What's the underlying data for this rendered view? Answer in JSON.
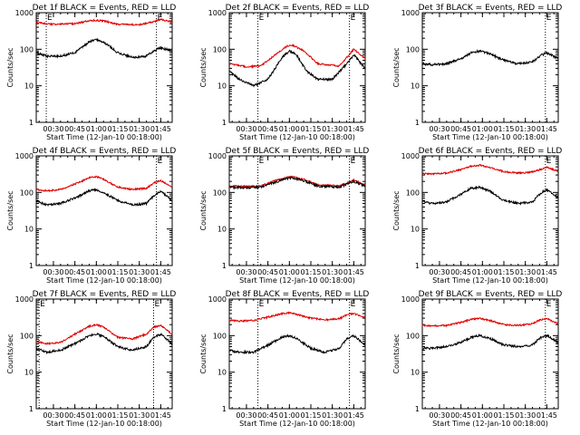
{
  "chart_data": [
    {
      "type": "line",
      "title": "Det 1f BLACK = Events, RED = LLD",
      "xlabel": "Start Time (12-Jan-10 00:18:00)",
      "ylabel": "Counts/sec",
      "xlim_minutes": [
        18,
        113
      ],
      "ylim": [
        1,
        1000
      ],
      "yscale": "log",
      "x_ticks": [
        "00:30",
        "00:45",
        "01:00",
        "01:15",
        "01:30",
        "01:45"
      ],
      "y_ticks": [
        "1",
        "10",
        "100",
        "1000"
      ],
      "markers": [
        {
          "label": "E",
          "x_minutes": 25
        },
        {
          "label": "E",
          "x_minutes": 102
        }
      ],
      "series": [
        {
          "name": "Events",
          "color": "#000000",
          "x_minutes": [
            18,
            25,
            35,
            45,
            55,
            60,
            65,
            75,
            85,
            95,
            100,
            105,
            113
          ],
          "values": [
            80,
            65,
            65,
            80,
            160,
            180,
            160,
            80,
            60,
            65,
            90,
            110,
            90
          ]
        },
        {
          "name": "LLD",
          "color": "#e00000",
          "x_minutes": [
            18,
            30,
            45,
            55,
            60,
            65,
            75,
            90,
            100,
            105,
            113
          ],
          "values": [
            530,
            480,
            500,
            600,
            620,
            600,
            480,
            470,
            560,
            650,
            560
          ]
        }
      ]
    },
    {
      "type": "line",
      "title": "Det 2f BLACK = Events, RED = LLD",
      "xlabel": "Start Time (12-Jan-10 00:18:00)",
      "ylabel": "Counts/sec",
      "xlim_minutes": [
        18,
        113
      ],
      "ylim": [
        1,
        1000
      ],
      "yscale": "log",
      "x_ticks": [
        "00:30",
        "00:45",
        "01:00",
        "01:15",
        "01:30",
        "01:45"
      ],
      "y_ticks": [
        "1",
        "10",
        "100",
        "1000"
      ],
      "markers": [
        {
          "label": "E",
          "x_minutes": 38
        },
        {
          "label": "E",
          "x_minutes": 102
        }
      ],
      "series": [
        {
          "name": "Events",
          "color": "#000000",
          "x_minutes": [
            18,
            25,
            35,
            45,
            55,
            60,
            65,
            72,
            80,
            90,
            100,
            105,
            113
          ],
          "values": [
            25,
            15,
            10,
            15,
            60,
            90,
            70,
            25,
            15,
            15,
            40,
            70,
            30
          ]
        },
        {
          "name": "LLD",
          "color": "#e00000",
          "x_minutes": [
            18,
            30,
            40,
            50,
            58,
            62,
            70,
            80,
            95,
            105,
            113
          ],
          "values": [
            40,
            33,
            35,
            70,
            120,
            130,
            90,
            40,
            35,
            100,
            55
          ]
        }
      ]
    },
    {
      "type": "line",
      "title": "Det 3f BLACK = Events, RED = LLD",
      "xlabel": "Start Time (12-Jan-10 00:18:00)",
      "ylabel": "Counts/sec",
      "xlim_minutes": [
        18,
        113
      ],
      "ylim": [
        1,
        1000
      ],
      "yscale": "log",
      "x_ticks": [
        "00:30",
        "00:45",
        "01:00",
        "01:15",
        "01:30",
        "01:45"
      ],
      "y_ticks": [
        "1",
        "10",
        "100",
        "1000"
      ],
      "markers": [
        {
          "label": "E",
          "x_minutes": 104
        }
      ],
      "series": [
        {
          "name": "Events",
          "color": "#000000",
          "x_minutes": [
            18,
            25,
            35,
            45,
            52,
            58,
            65,
            75,
            85,
            95,
            100,
            105,
            113
          ],
          "values": [
            40,
            38,
            40,
            55,
            80,
            90,
            75,
            50,
            40,
            45,
            65,
            80,
            55
          ]
        }
      ]
    },
    {
      "type": "line",
      "title": "Det 4f BLACK = Events, RED = LLD",
      "xlabel": "Start Time (12-Jan-10 00:18:00)",
      "ylabel": "Counts/sec",
      "xlim_minutes": [
        18,
        113
      ],
      "ylim": [
        1,
        1000
      ],
      "yscale": "log",
      "x_ticks": [
        "00:30",
        "00:45",
        "01:00",
        "01:15",
        "01:30",
        "01:45"
      ],
      "y_ticks": [
        "1",
        "10",
        "100",
        "1000"
      ],
      "markers": [
        {
          "label": "E",
          "x_minutes": 102
        }
      ],
      "series": [
        {
          "name": "Events",
          "color": "#000000",
          "x_minutes": [
            18,
            25,
            35,
            45,
            55,
            60,
            65,
            75,
            85,
            95,
            100,
            105,
            113
          ],
          "values": [
            60,
            45,
            50,
            70,
            110,
            120,
            100,
            60,
            45,
            50,
            80,
            110,
            60
          ]
        },
        {
          "name": "LLD",
          "color": "#e00000",
          "x_minutes": [
            18,
            25,
            35,
            45,
            55,
            60,
            65,
            75,
            85,
            95,
            100,
            105,
            113
          ],
          "values": [
            120,
            110,
            120,
            170,
            250,
            270,
            230,
            140,
            120,
            130,
            180,
            210,
            140
          ]
        }
      ]
    },
    {
      "type": "line",
      "title": "Det 5f BLACK = Events, RED = LLD",
      "xlabel": "Start Time (12-Jan-10 00:18:00)",
      "ylabel": "Counts/sec",
      "xlim_minutes": [
        18,
        113
      ],
      "ylim": [
        1,
        1000
      ],
      "yscale": "log",
      "x_ticks": [
        "00:30",
        "00:45",
        "01:00",
        "01:15",
        "01:30",
        "01:45"
      ],
      "y_ticks": [
        "1",
        "10",
        "100",
        "1000"
      ],
      "markers": [
        {
          "label": "E",
          "x_minutes": 38
        },
        {
          "label": "E",
          "x_minutes": 102
        }
      ],
      "series": [
        {
          "name": "Events",
          "color": "#000000",
          "x_minutes": [
            18,
            30,
            40,
            50,
            58,
            62,
            70,
            80,
            95,
            105,
            113
          ],
          "values": [
            140,
            135,
            140,
            190,
            240,
            250,
            210,
            150,
            140,
            200,
            150
          ]
        },
        {
          "name": "LLD",
          "color": "#e00000",
          "x_minutes": [
            18,
            30,
            40,
            50,
            58,
            62,
            70,
            80,
            95,
            105,
            113
          ],
          "values": [
            150,
            145,
            150,
            210,
            260,
            270,
            230,
            160,
            150,
            220,
            165
          ]
        }
      ]
    },
    {
      "type": "line",
      "title": "Det 6f BLACK = Events, RED = LLD",
      "xlabel": "Start Time (12-Jan-10 00:18:00)",
      "ylabel": "Counts/sec",
      "xlim_minutes": [
        18,
        113
      ],
      "ylim": [
        1,
        1000
      ],
      "yscale": "log",
      "x_ticks": [
        "00:30",
        "00:45",
        "01:00",
        "01:15",
        "01:30",
        "01:45"
      ],
      "y_ticks": [
        "1",
        "10",
        "100",
        "1000"
      ],
      "markers": [
        {
          "label": "E",
          "x_minutes": 104
        }
      ],
      "series": [
        {
          "name": "Events",
          "color": "#000000",
          "x_minutes": [
            18,
            25,
            35,
            45,
            52,
            58,
            65,
            75,
            85,
            95,
            100,
            105,
            113
          ],
          "values": [
            55,
            50,
            55,
            90,
            130,
            140,
            110,
            60,
            50,
            55,
            90,
            120,
            70
          ]
        },
        {
          "name": "LLD",
          "color": "#e00000",
          "x_minutes": [
            18,
            25,
            35,
            45,
            52,
            58,
            65,
            75,
            85,
            95,
            100,
            105,
            113
          ],
          "values": [
            330,
            320,
            340,
            420,
            520,
            560,
            480,
            370,
            340,
            360,
            420,
            480,
            380
          ]
        }
      ]
    },
    {
      "type": "line",
      "title": "Det 7f BLACK = Events, RED = LLD",
      "xlabel": "Start Time (12-Jan-10 00:18:00)",
      "ylabel": "Counts/sec",
      "xlim_minutes": [
        18,
        113
      ],
      "ylim": [
        1,
        1000
      ],
      "yscale": "log",
      "x_ticks": [
        "00:30",
        "00:45",
        "01:00",
        "01:15",
        "01:30",
        "01:45"
      ],
      "y_ticks": [
        "1",
        "10",
        "100",
        "1000"
      ],
      "markers": [
        {
          "label": "E",
          "x_minutes": 20
        },
        {
          "label": "E",
          "x_minutes": 100
        }
      ],
      "series": [
        {
          "name": "Events",
          "color": "#000000",
          "x_minutes": [
            18,
            25,
            35,
            45,
            55,
            60,
            65,
            75,
            85,
            95,
            100,
            105,
            113
          ],
          "values": [
            45,
            35,
            40,
            60,
            100,
            110,
            95,
            50,
            40,
            50,
            90,
            110,
            60
          ]
        },
        {
          "name": "LLD",
          "color": "#e00000",
          "x_minutes": [
            18,
            25,
            35,
            45,
            55,
            60,
            65,
            75,
            85,
            95,
            100,
            105,
            113
          ],
          "values": [
            70,
            60,
            65,
            110,
            180,
            200,
            170,
            90,
            80,
            110,
            170,
            190,
            110
          ]
        }
      ]
    },
    {
      "type": "line",
      "title": "Det 8f BLACK = Events, RED = LLD",
      "xlabel": "Start Time (12-Jan-10 00:18:00)",
      "ylabel": "Counts/sec",
      "xlim_minutes": [
        18,
        113
      ],
      "ylim": [
        1,
        1000
      ],
      "yscale": "log",
      "x_ticks": [
        "00:30",
        "00:45",
        "01:00",
        "01:15",
        "01:30",
        "01:45"
      ],
      "y_ticks": [
        "1",
        "10",
        "100",
        "1000"
      ],
      "markers": [
        {
          "label": "E",
          "x_minutes": 38
        },
        {
          "label": "E",
          "x_minutes": 102
        }
      ],
      "series": [
        {
          "name": "Events",
          "color": "#000000",
          "x_minutes": [
            18,
            25,
            35,
            45,
            55,
            60,
            65,
            75,
            85,
            95,
            100,
            105,
            113
          ],
          "values": [
            40,
            35,
            35,
            55,
            90,
            100,
            85,
            45,
            35,
            45,
            80,
            100,
            55
          ]
        },
        {
          "name": "LLD",
          "color": "#e00000",
          "x_minutes": [
            18,
            25,
            35,
            45,
            55,
            60,
            65,
            75,
            85,
            95,
            100,
            105,
            113
          ],
          "values": [
            260,
            250,
            260,
            320,
            400,
            420,
            380,
            300,
            270,
            290,
            370,
            400,
            310
          ]
        }
      ]
    },
    {
      "type": "line",
      "title": "Det 9f BLACK = Events, RED = LLD",
      "xlabel": "Start Time (12-Jan-10 00:18:00)",
      "ylabel": "Counts/sec",
      "xlim_minutes": [
        18,
        113
      ],
      "ylim": [
        1,
        1000
      ],
      "yscale": "log",
      "x_ticks": [
        "00:30",
        "00:45",
        "01:00",
        "01:15",
        "01:30",
        "01:45"
      ],
      "y_ticks": [
        "1",
        "10",
        "100",
        "1000"
      ],
      "markers": [
        {
          "label": "E",
          "x_minutes": 104
        }
      ],
      "series": [
        {
          "name": "Events",
          "color": "#000000",
          "x_minutes": [
            18,
            25,
            35,
            45,
            52,
            58,
            65,
            75,
            85,
            95,
            100,
            105,
            113
          ],
          "values": [
            45,
            45,
            50,
            65,
            90,
            100,
            85,
            55,
            50,
            55,
            85,
            100,
            65
          ]
        },
        {
          "name": "LLD",
          "color": "#e00000",
          "x_minutes": [
            18,
            25,
            35,
            45,
            52,
            58,
            65,
            75,
            85,
            95,
            100,
            105,
            113
          ],
          "values": [
            190,
            185,
            190,
            230,
            280,
            300,
            260,
            200,
            190,
            210,
            270,
            290,
            210
          ]
        }
      ]
    }
  ]
}
